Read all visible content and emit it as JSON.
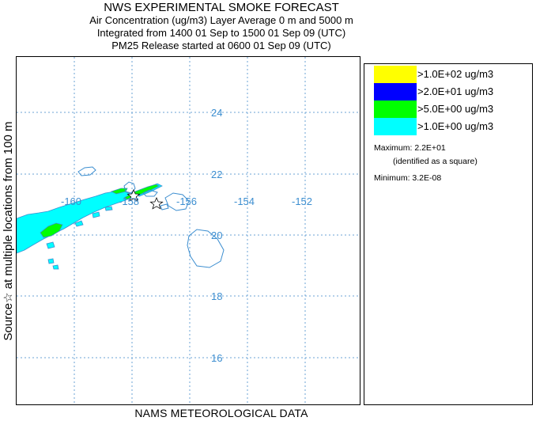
{
  "header": {
    "title": "NWS EXPERIMENTAL SMOKE FORECAST",
    "line2": "Air Concentration (ug/m3) Layer Average    0 m and  5000 m",
    "line3": "Integrated from 1400 01 Sep to 1500 01 Sep 09 (UTC)",
    "line4": "PM25 Release started at 0600 01 Sep 09 (UTC)"
  },
  "side_label": "Source☆ at multiple locations    from   100 m",
  "footer": "NAMS METEOROLOGICAL DATA",
  "map": {
    "lon_labels": [
      "-160",
      "-158",
      "-156",
      "-154",
      "-152"
    ],
    "lat_labels": [
      "24",
      "22",
      "20",
      "18",
      "16"
    ],
    "grid_color": "#6ba3d6",
    "coast_color": "#3c8ed0",
    "source_marker_icon": "star-outline-icon"
  },
  "legend": {
    "items": [
      {
        "label": ">1.0E+02 ug/m3",
        "color": "#ffff00"
      },
      {
        "label": ">2.0E+01 ug/m3",
        "color": "#0000ff"
      },
      {
        "label": ">5.0E+00 ug/m3",
        "color": "#00ff00"
      },
      {
        "label": ">1.0E+00 ug/m3",
        "color": "#00ffff"
      }
    ],
    "maximum": "Maximum: 2.2E+01",
    "maximum_note": "(identified as a square)",
    "minimum": "Minimum: 3.2E-08"
  }
}
